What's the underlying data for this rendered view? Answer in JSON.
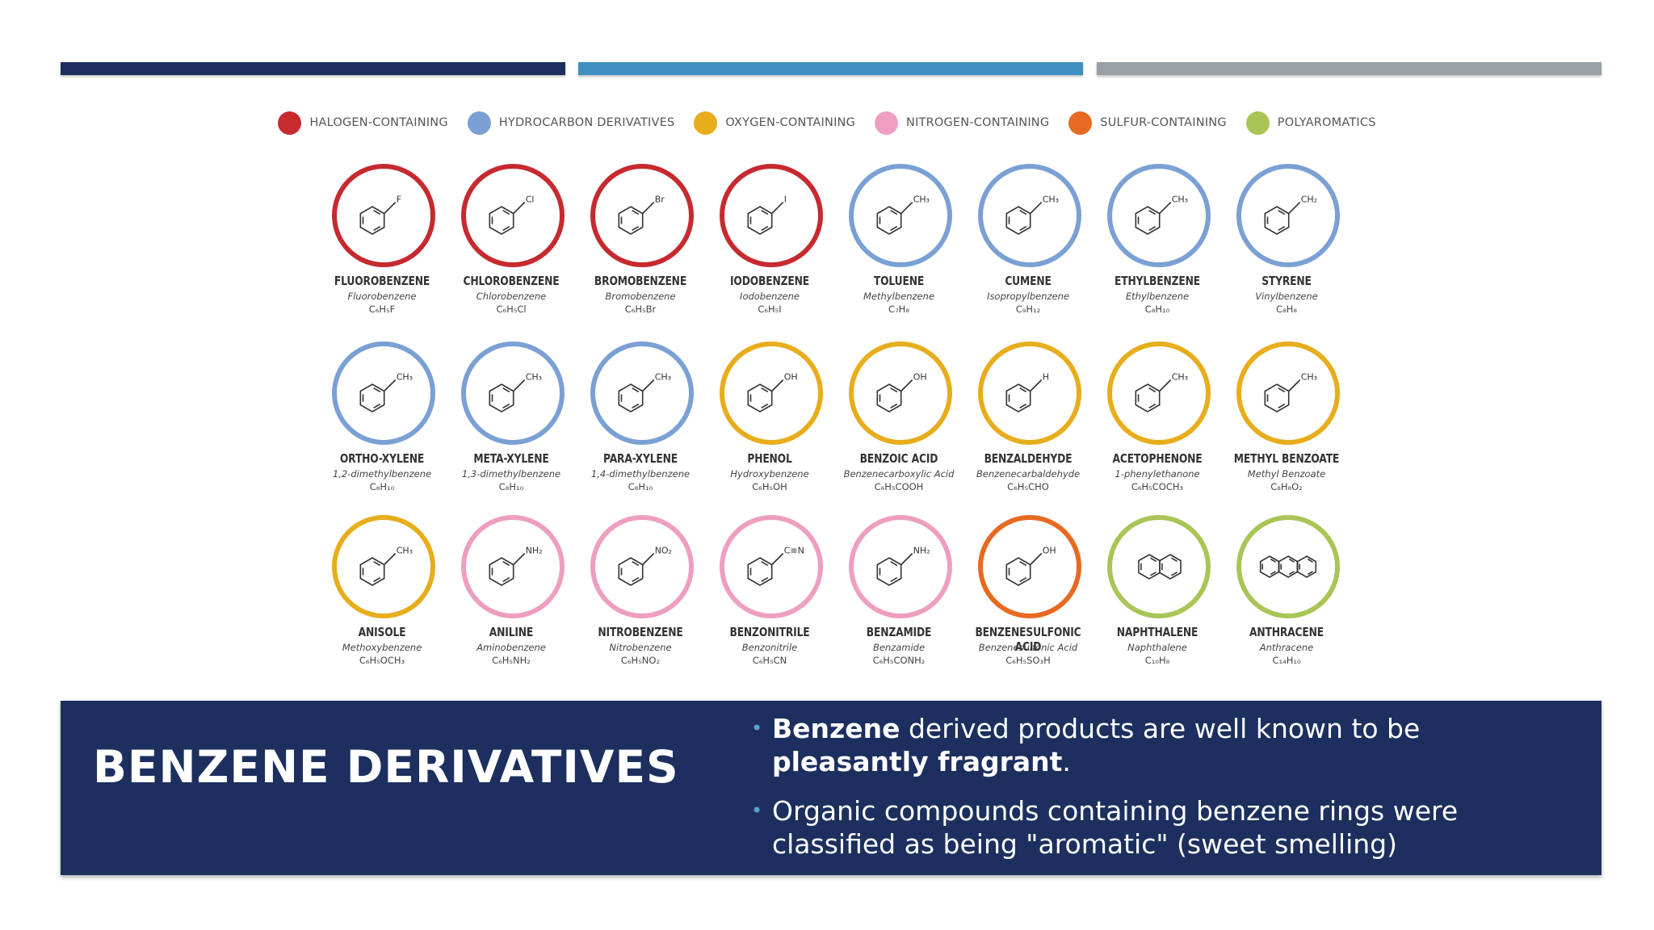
{
  "colors": {
    "halogen": "#c62a2f",
    "hydrocarbon": "#7aa0d4",
    "oxygen": "#e8ad1c",
    "nitrogen": "#ee9ec0",
    "sulfur": "#e76a22",
    "polyaromatic": "#a8c556",
    "navy": "#1c2f5e",
    "blue": "#3f8fc0",
    "gray": "#99a1a6"
  },
  "legend": [
    {
      "label": "HALOGEN-CONTAINING",
      "color": "#c62a2f"
    },
    {
      "label": "HYDROCARBON DERIVATIVES",
      "color": "#7aa0d4"
    },
    {
      "label": "OXYGEN-CONTAINING",
      "color": "#e8ad1c"
    },
    {
      "label": "NITROGEN-CONTAINING",
      "color": "#ee9ec0"
    },
    {
      "label": "SULFUR-CONTAINING",
      "color": "#e76a22"
    },
    {
      "label": "POLYAROMATICS",
      "color": "#a8c556"
    }
  ],
  "compounds": [
    {
      "name": "FLUOROBENZENE",
      "alt": "Fluorobenzene",
      "formula": "C₆H₅F",
      "group": "halogen",
      "sub": "F"
    },
    {
      "name": "CHLOROBENZENE",
      "alt": "Chlorobenzene",
      "formula": "C₆H₅Cl",
      "group": "halogen",
      "sub": "Cl"
    },
    {
      "name": "BROMOBENZENE",
      "alt": "Bromobenzene",
      "formula": "C₆H₅Br",
      "group": "halogen",
      "sub": "Br"
    },
    {
      "name": "IODOBENZENE",
      "alt": "Iodobenzene",
      "formula": "C₆H₅I",
      "group": "halogen",
      "sub": "I"
    },
    {
      "name": "TOLUENE",
      "alt": "Methylbenzene",
      "formula": "C₇H₈",
      "group": "hydrocarbon",
      "sub": "CH₃"
    },
    {
      "name": "CUMENE",
      "alt": "Isopropylbenzene",
      "formula": "C₉H₁₂",
      "group": "hydrocarbon",
      "sub": "CH₃"
    },
    {
      "name": "ETHYLBENZENE",
      "alt": "Ethylbenzene",
      "formula": "C₈H₁₀",
      "group": "hydrocarbon",
      "sub": "CH₃"
    },
    {
      "name": "STYRENE",
      "alt": "Vinylbenzene",
      "formula": "C₈H₈",
      "group": "hydrocarbon",
      "sub": "CH₂"
    },
    {
      "name": "ORTHO-XYLENE",
      "alt": "1,2-dimethylbenzene",
      "formula": "C₈H₁₀",
      "group": "hydrocarbon",
      "sub": "CH₃"
    },
    {
      "name": "META-XYLENE",
      "alt": "1,3-dimethylbenzene",
      "formula": "C₈H₁₀",
      "group": "hydrocarbon",
      "sub": "CH₃"
    },
    {
      "name": "PARA-XYLENE",
      "alt": "1,4-dimethylbenzene",
      "formula": "C₈H₁₀",
      "group": "hydrocarbon",
      "sub": "CH₃"
    },
    {
      "name": "PHENOL",
      "alt": "Hydroxybenzene",
      "formula": "C₆H₅OH",
      "group": "oxygen",
      "sub": "OH"
    },
    {
      "name": "BENZOIC ACID",
      "alt": "Benzenecarboxylic Acid",
      "formula": "C₆H₅COOH",
      "group": "oxygen",
      "sub": "OH"
    },
    {
      "name": "BENZALDEHYDE",
      "alt": "Benzenecarbaldehyde",
      "formula": "C₆H₅CHO",
      "group": "oxygen",
      "sub": "H"
    },
    {
      "name": "ACETOPHENONE",
      "alt": "1-phenylethanone",
      "formula": "C₆H₅COCH₃",
      "group": "oxygen",
      "sub": "CH₃"
    },
    {
      "name": "METHYL BENZOATE",
      "alt": "Methyl Benzoate",
      "formula": "C₈H₈O₂",
      "group": "oxygen",
      "sub": "CH₃"
    },
    {
      "name": "ANISOLE",
      "alt": "Methoxybenzene",
      "formula": "C₆H₅OCH₃",
      "group": "oxygen",
      "sub": "CH₃"
    },
    {
      "name": "ANILINE",
      "alt": "Aminobenzene",
      "formula": "C₆H₅NH₂",
      "group": "nitrogen",
      "sub": "NH₂"
    },
    {
      "name": "NITROBENZENE",
      "alt": "Nitrobenzene",
      "formula": "C₆H₅NO₂",
      "group": "nitrogen",
      "sub": "NO₂"
    },
    {
      "name": "BENZONITRILE",
      "alt": "Benzonitrile",
      "formula": "C₆H₅CN",
      "group": "nitrogen",
      "sub": "C≡N"
    },
    {
      "name": "BENZAMIDE",
      "alt": "Benzamide",
      "formula": "C₆H₅CONH₂",
      "group": "nitrogen",
      "sub": "NH₂"
    },
    {
      "name": "BENZENESULFONIC ACID",
      "alt": "Benzenesulfonic Acid",
      "formula": "C₆H₅SO₃H",
      "group": "sulfur",
      "sub": "OH"
    },
    {
      "name": "NAPHTHALENE",
      "alt": "Naphthalene",
      "formula": "C₁₀H₈",
      "group": "polyaromatic",
      "sub": ""
    },
    {
      "name": "ANTHRACENE",
      "alt": "Anthracene",
      "formula": "C₁₄H₁₀",
      "group": "polyaromatic",
      "sub": ""
    }
  ],
  "panel": {
    "title": "BENZENE DERIVATIVES",
    "bullet1": {
      "b1": "Benzene",
      "t1": " derived products are well known to be ",
      "b2": "pleasantly fragrant",
      "t2": "."
    },
    "bullet2": "Organic compounds containing benzene rings were classified as being \"aromatic\" (sweet smelling)"
  }
}
